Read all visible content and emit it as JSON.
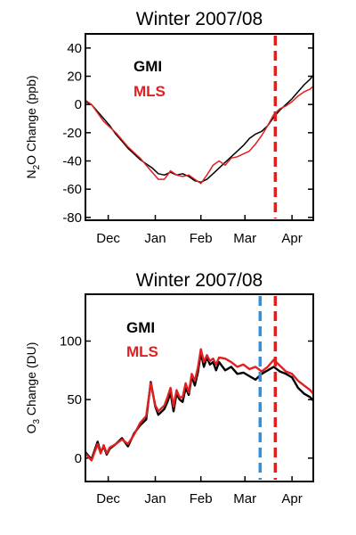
{
  "chart_data": [
    {
      "type": "line",
      "title": "Winter 2007/08",
      "ylabel_main": "N",
      "ylabel_sub": "2",
      "ylabel_rest": "O Change (ppb)",
      "ylim": [
        -82,
        50
      ],
      "xlim": [
        0,
        150
      ],
      "yticks": [
        -80,
        -60,
        -40,
        -20,
        0,
        20,
        40
      ],
      "xticks": [
        {
          "label": "Dec",
          "x": 15
        },
        {
          "label": "Jan",
          "x": 46
        },
        {
          "label": "Feb",
          "x": 76
        },
        {
          "label": "Mar",
          "x": 105
        },
        {
          "label": "Apr",
          "x": 136
        }
      ],
      "legend_placement": "top-left",
      "vlines": [
        {
          "x": 125,
          "color": "#e02020"
        }
      ],
      "series": [
        {
          "name": "GMI",
          "color": "#000000",
          "points": [
            [
              0,
              2
            ],
            [
              4,
              0
            ],
            [
              8,
              -5
            ],
            [
              12,
              -10
            ],
            [
              16,
              -15
            ],
            [
              20,
              -21
            ],
            [
              24,
              -26
            ],
            [
              28,
              -31
            ],
            [
              32,
              -35
            ],
            [
              36,
              -39
            ],
            [
              40,
              -42
            ],
            [
              44,
              -45
            ],
            [
              48,
              -49
            ],
            [
              52,
              -50
            ],
            [
              56,
              -48
            ],
            [
              60,
              -50
            ],
            [
              64,
              -49
            ],
            [
              68,
              -51
            ],
            [
              72,
              -54
            ],
            [
              76,
              -55
            ],
            [
              80,
              -53
            ],
            [
              84,
              -49
            ],
            [
              88,
              -45
            ],
            [
              92,
              -41
            ],
            [
              96,
              -37
            ],
            [
              100,
              -33
            ],
            [
              104,
              -29
            ],
            [
              108,
              -24
            ],
            [
              112,
              -21
            ],
            [
              116,
              -19
            ],
            [
              120,
              -15
            ],
            [
              124,
              -9
            ],
            [
              128,
              -4
            ],
            [
              132,
              0
            ],
            [
              136,
              4
            ],
            [
              140,
              9
            ],
            [
              144,
              14
            ],
            [
              148,
              18
            ],
            [
              150,
              21
            ]
          ]
        },
        {
          "name": "MLS",
          "color": "#e02020",
          "points": [
            [
              0,
              3
            ],
            [
              4,
              0
            ],
            [
              8,
              -6
            ],
            [
              12,
              -12
            ],
            [
              16,
              -16
            ],
            [
              20,
              -20
            ],
            [
              24,
              -25
            ],
            [
              28,
              -30
            ],
            [
              32,
              -34
            ],
            [
              36,
              -38
            ],
            [
              40,
              -43
            ],
            [
              44,
              -48
            ],
            [
              48,
              -53
            ],
            [
              52,
              -53
            ],
            [
              56,
              -47
            ],
            [
              60,
              -50
            ],
            [
              64,
              -51
            ],
            [
              68,
              -50
            ],
            [
              72,
              -53
            ],
            [
              76,
              -56
            ],
            [
              80,
              -50
            ],
            [
              84,
              -43
            ],
            [
              88,
              -40
            ],
            [
              92,
              -43
            ],
            [
              96,
              -38
            ],
            [
              100,
              -37
            ],
            [
              104,
              -35
            ],
            [
              108,
              -33
            ],
            [
              112,
              -28
            ],
            [
              116,
              -22
            ],
            [
              120,
              -15
            ],
            [
              124,
              -7
            ],
            [
              128,
              -3
            ],
            [
              132,
              -1
            ],
            [
              136,
              2
            ],
            [
              140,
              6
            ],
            [
              144,
              9
            ],
            [
              148,
              11
            ],
            [
              150,
              13
            ]
          ]
        }
      ]
    },
    {
      "type": "line",
      "title": "Winter 2007/08",
      "ylabel_main": "O",
      "ylabel_sub": "3",
      "ylabel_rest": " Change (DU)",
      "ylim": [
        -20,
        140
      ],
      "xlim": [
        0,
        150
      ],
      "yticks": [
        0,
        50,
        100
      ],
      "xticks": [
        {
          "label": "Dec",
          "x": 15
        },
        {
          "label": "Jan",
          "x": 46
        },
        {
          "label": "Feb",
          "x": 76
        },
        {
          "label": "Mar",
          "x": 105
        },
        {
          "label": "Apr",
          "x": 136
        }
      ],
      "legend_placement": "top-left",
      "vlines": [
        {
          "x": 115,
          "color": "#2f8fe0"
        },
        {
          "x": 125,
          "color": "#e02020"
        }
      ],
      "series": [
        {
          "name": "GMI",
          "color": "#000000",
          "points": [
            [
              0,
              5
            ],
            [
              4,
              -1
            ],
            [
              8,
              14
            ],
            [
              10,
              5
            ],
            [
              12,
              10
            ],
            [
              14,
              3
            ],
            [
              16,
              8
            ],
            [
              20,
              12
            ],
            [
              24,
              17
            ],
            [
              28,
              10
            ],
            [
              32,
              21
            ],
            [
              36,
              28
            ],
            [
              40,
              33
            ],
            [
              43,
              65
            ],
            [
              46,
              44
            ],
            [
              48,
              37
            ],
            [
              52,
              42
            ],
            [
              54,
              48
            ],
            [
              56,
              56
            ],
            [
              58,
              40
            ],
            [
              60,
              55
            ],
            [
              62,
              50
            ],
            [
              64,
              48
            ],
            [
              66,
              60
            ],
            [
              68,
              54
            ],
            [
              70,
              70
            ],
            [
              72,
              62
            ],
            [
              74,
              73
            ],
            [
              76,
              90
            ],
            [
              78,
              78
            ],
            [
              80,
              86
            ],
            [
              82,
              80
            ],
            [
              84,
              82
            ],
            [
              86,
              75
            ],
            [
              88,
              82
            ],
            [
              92,
              75
            ],
            [
              96,
              78
            ],
            [
              100,
              72
            ],
            [
              104,
              73
            ],
            [
              108,
              70
            ],
            [
              112,
              67
            ],
            [
              116,
              72
            ],
            [
              120,
              75
            ],
            [
              124,
              78
            ],
            [
              128,
              74
            ],
            [
              132,
              72
            ],
            [
              136,
              69
            ],
            [
              140,
              60
            ],
            [
              144,
              55
            ],
            [
              148,
              52
            ],
            [
              150,
              49
            ]
          ]
        },
        {
          "name": "MLS",
          "color": "#e02020",
          "points": [
            [
              0,
              4
            ],
            [
              4,
              -2
            ],
            [
              8,
              12
            ],
            [
              10,
              4
            ],
            [
              12,
              11
            ],
            [
              14,
              4
            ],
            [
              16,
              9
            ],
            [
              20,
              12
            ],
            [
              24,
              16
            ],
            [
              28,
              12
            ],
            [
              32,
              20
            ],
            [
              36,
              30
            ],
            [
              40,
              36
            ],
            [
              43,
              64
            ],
            [
              46,
              45
            ],
            [
              48,
              40
            ],
            [
              52,
              45
            ],
            [
              54,
              52
            ],
            [
              56,
              60
            ],
            [
              58,
              44
            ],
            [
              60,
              58
            ],
            [
              62,
              52
            ],
            [
              64,
              52
            ],
            [
              66,
              64
            ],
            [
              68,
              56
            ],
            [
              70,
              72
            ],
            [
              72,
              66
            ],
            [
              74,
              77
            ],
            [
              76,
              93
            ],
            [
              78,
              82
            ],
            [
              80,
              88
            ],
            [
              82,
              83
            ],
            [
              84,
              85
            ],
            [
              86,
              80
            ],
            [
              88,
              86
            ],
            [
              92,
              85
            ],
            [
              96,
              82
            ],
            [
              100,
              78
            ],
            [
              104,
              80
            ],
            [
              108,
              76
            ],
            [
              112,
              78
            ],
            [
              116,
              74
            ],
            [
              120,
              78
            ],
            [
              124,
              84
            ],
            [
              128,
              79
            ],
            [
              132,
              74
            ],
            [
              136,
              72
            ],
            [
              140,
              66
            ],
            [
              144,
              62
            ],
            [
              148,
              58
            ],
            [
              150,
              55
            ]
          ]
        }
      ]
    }
  ]
}
